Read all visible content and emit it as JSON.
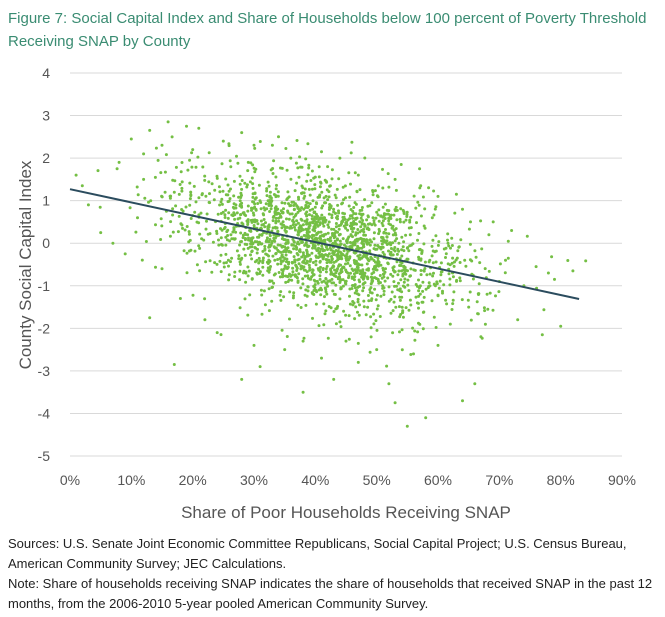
{
  "title": "Figure 7: Social Capital Index and Share of Households below 100 percent of Poverty Threshold Receiving SNAP by County",
  "sources": "Sources: U.S. Senate Joint Economic Committee Republicans, Social Capital Project; U.S. Census Bureau, American Community Survey; JEC Calculations.",
  "note": "Note: Share of households receiving SNAP indicates the share of households that received SNAP in the past 12 months, from the 2006-2010 5-year pooled American Community Survey.",
  "colors": {
    "points": "#74bf44",
    "trendline": "#2b4c5e",
    "gridline": "#d9d9d9",
    "title": "#3a8c72"
  },
  "chart_data": {
    "type": "scatter",
    "xlabel": "Share of Poor Households Receiving SNAP",
    "ylabel": "County Social Capital Index",
    "xlim": [
      0,
      0.9
    ],
    "ylim": [
      -5,
      4
    ],
    "x_ticks": [
      "0%",
      "10%",
      "20%",
      "30%",
      "40%",
      "50%",
      "60%",
      "70%",
      "80%",
      "90%"
    ],
    "y_ticks": [
      "4",
      "3",
      "2",
      "1",
      "0",
      "-1",
      "-2",
      "-3",
      "-4",
      "-5"
    ],
    "grid": "horizontal",
    "legend": "none",
    "trendline": {
      "x": [
        0.0,
        0.83
      ],
      "y": [
        1.27,
        -1.31
      ]
    },
    "points": [
      [
        0.16,
        2.85
      ],
      [
        0.19,
        2.75
      ],
      [
        0.21,
        2.7
      ],
      [
        0.1,
        2.45
      ],
      [
        0.13,
        2.65
      ],
      [
        0.28,
        2.6
      ],
      [
        0.34,
        2.5
      ],
      [
        0.12,
        2.1
      ],
      [
        0.33,
        2.3
      ],
      [
        0.41,
        2.15
      ],
      [
        0.44,
        2.0
      ],
      [
        0.54,
        1.85
      ],
      [
        0.57,
        1.75
      ],
      [
        0.53,
        1.5
      ],
      [
        0.6,
        1.1
      ],
      [
        0.63,
        1.15
      ],
      [
        0.69,
        0.5
      ],
      [
        0.64,
        0.8
      ],
      [
        0.72,
        0.3
      ],
      [
        0.76,
        -0.55
      ],
      [
        0.78,
        -0.7
      ],
      [
        0.79,
        -0.85
      ],
      [
        0.82,
        -0.65
      ],
      [
        0.8,
        -1.95
      ],
      [
        0.77,
        -2.15
      ],
      [
        0.73,
        -1.8
      ],
      [
        0.67,
        -2.2
      ],
      [
        0.66,
        -3.3
      ],
      [
        0.64,
        -3.7
      ],
      [
        0.58,
        -4.1
      ],
      [
        0.55,
        -4.3
      ],
      [
        0.53,
        -3.75
      ],
      [
        0.52,
        -3.3
      ],
      [
        0.38,
        -3.5
      ],
      [
        0.43,
        -3.2
      ],
      [
        0.28,
        -3.2
      ],
      [
        0.17,
        -2.85
      ],
      [
        0.13,
        -1.75
      ],
      [
        0.09,
        -0.25
      ],
      [
        0.05,
        0.25
      ],
      [
        0.03,
        0.9
      ],
      [
        0.02,
        1.35
      ],
      [
        0.01,
        1.6
      ],
      [
        0.08,
        1.9
      ],
      [
        0.12,
        1.5
      ],
      [
        0.11,
        0.6
      ],
      [
        0.07,
        0.0
      ],
      [
        0.15,
        -0.6
      ],
      [
        0.18,
        -1.3
      ],
      [
        0.22,
        -1.8
      ],
      [
        0.24,
        -2.1
      ],
      [
        0.3,
        -2.4
      ],
      [
        0.31,
        -2.9
      ],
      [
        0.35,
        -2.5
      ],
      [
        0.38,
        -2.3
      ],
      [
        0.41,
        -2.7
      ],
      [
        0.45,
        -2.3
      ],
      [
        0.47,
        -2.8
      ],
      [
        0.5,
        -2.5
      ],
      [
        0.56,
        -2.6
      ],
      [
        0.6,
        -2.4
      ],
      [
        0.62,
        -1.9
      ],
      [
        0.65,
        -1.5
      ],
      [
        0.68,
        -1.2
      ],
      [
        0.7,
        -0.9
      ],
      [
        0.71,
        -0.4
      ],
      [
        0.74,
        -1.0
      ],
      [
        0.47,
        1.6
      ],
      [
        0.42,
        1.8
      ],
      [
        0.36,
        2.0
      ],
      [
        0.3,
        2.3
      ],
      [
        0.25,
        2.4
      ],
      [
        0.2,
        2.2
      ],
      [
        0.15,
        2.3
      ],
      [
        0.17,
        1.2
      ]
    ]
  }
}
